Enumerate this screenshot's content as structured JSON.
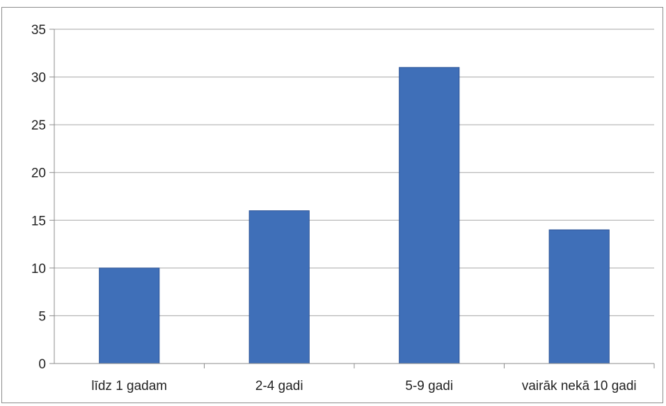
{
  "chart_data": {
    "type": "bar",
    "title": "",
    "xlabel": "",
    "ylabel": "",
    "categories": [
      "līdz 1 gadam",
      "2-4 gadi",
      "5-9 gadi",
      "vairāk nekā 10 gadi"
    ],
    "values": [
      10,
      16,
      31,
      14
    ],
    "ylim": [
      0,
      35
    ],
    "yticks": [
      "0",
      "5",
      "10",
      "15",
      "20",
      "25",
      "30",
      "35"
    ],
    "grid": true,
    "legend": "none",
    "colors": {
      "bar": "#3f6fb8",
      "bar_edge": "#2f5597",
      "grid": "#a6a6a6",
      "axis": "#8c8c8c"
    }
  }
}
